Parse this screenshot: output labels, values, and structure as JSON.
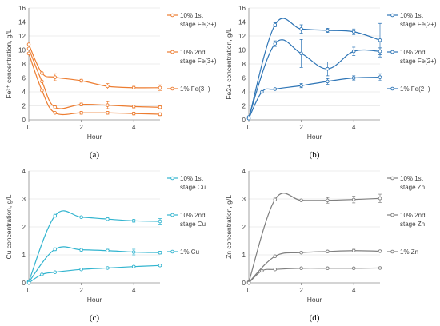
{
  "chart_data": [
    {
      "type": "line",
      "panel_label": "(a)",
      "xlabel": "Hour",
      "ylabel": "Fe³⁺ concentration, g/L",
      "xlim": [
        0,
        5
      ],
      "ylim": [
        0,
        16
      ],
      "xticks": [
        0,
        2,
        4
      ],
      "yticks": [
        0,
        2,
        4,
        6,
        8,
        10,
        12,
        14,
        16
      ],
      "grid": "horizontal",
      "legend_position": "right",
      "color": "#ed7d31",
      "series": [
        {
          "name_lines": [
            "10% 1st",
            "stage Fe(3+)"
          ],
          "x": [
            0,
            0.5,
            1,
            2,
            3,
            4,
            5
          ],
          "y": [
            9.5,
            4.2,
            1.0,
            1.0,
            1.0,
            0.9,
            0.8
          ],
          "err": [
            0,
            0,
            0,
            0.2,
            0.2,
            0.2,
            0.2
          ]
        },
        {
          "name_lines": [
            "10% 2nd",
            "stage Fe(3+)"
          ],
          "x": [
            0,
            0.5,
            1,
            2,
            3,
            4,
            5
          ],
          "y": [
            10.8,
            6.7,
            6.1,
            5.6,
            4.8,
            4.6,
            4.6
          ],
          "err": [
            0,
            0,
            0.5,
            0.2,
            0.4,
            0.2,
            0.4
          ]
        },
        {
          "name_lines": [
            "1% Fe(3+)"
          ],
          "x": [
            0,
            0.5,
            1,
            2,
            3,
            4,
            5
          ],
          "y": [
            10.2,
            5.5,
            1.8,
            2.2,
            2.1,
            1.9,
            1.8
          ],
          "err": [
            0,
            0,
            0.2,
            0.2,
            0.5,
            0.2,
            0.2
          ]
        }
      ]
    },
    {
      "type": "line",
      "panel_label": "(b)",
      "xlabel": "Hour",
      "ylabel": "Fe2+ concentration, g/L",
      "xlim": [
        0,
        5
      ],
      "ylim": [
        0,
        16
      ],
      "xticks": [
        0,
        2,
        4
      ],
      "yticks": [
        0,
        2,
        4,
        6,
        8,
        10,
        12,
        14,
        16
      ],
      "grid": "horizontal",
      "legend_position": "right",
      "color": "#2e75b6",
      "series": [
        {
          "name_lines": [
            "10% 1st",
            "stage Fe(2+)"
          ],
          "x": [
            0,
            1,
            2,
            3,
            4,
            5
          ],
          "y": [
            0.2,
            13.6,
            13.0,
            12.8,
            12.6,
            11.4
          ],
          "err": [
            0,
            0.3,
            0.6,
            0.3,
            0.4,
            2.4
          ]
        },
        {
          "name_lines": [
            "10% 2nd",
            "stage Fe(2+)"
          ],
          "x": [
            0,
            1,
            2,
            3,
            4,
            5
          ],
          "y": [
            0.4,
            10.9,
            9.5,
            7.3,
            9.8,
            9.8
          ],
          "err": [
            0,
            0.4,
            2.0,
            1.0,
            0.6,
            0.5
          ]
        },
        {
          "name_lines": [
            "1% Fe(2+)"
          ],
          "x": [
            0,
            0.5,
            1,
            2,
            3,
            4,
            5
          ],
          "y": [
            0.2,
            4.0,
            4.4,
            4.9,
            5.5,
            6.0,
            6.1
          ],
          "err": [
            0,
            0,
            0,
            0.3,
            0.4,
            0.3,
            0.5
          ]
        }
      ]
    },
    {
      "type": "line",
      "panel_label": "(c)",
      "xlabel": "Hour",
      "ylabel": "Cu concentration, g/L",
      "xlim": [
        0,
        5
      ],
      "ylim": [
        0,
        4
      ],
      "xticks": [
        0,
        2,
        4
      ],
      "yticks": [
        0,
        1,
        2,
        3,
        4
      ],
      "grid": "horizontal",
      "legend_position": "right",
      "color": "#31b4cf",
      "series": [
        {
          "name_lines": [
            "10% 1st",
            "stage Cu"
          ],
          "x": [
            0,
            1,
            2,
            3,
            4,
            5
          ],
          "y": [
            0.05,
            2.4,
            2.35,
            2.28,
            2.22,
            2.2
          ],
          "err": [
            0,
            0.05,
            0.03,
            0.05,
            0.05,
            0.1
          ]
        },
        {
          "name_lines": [
            "10% 2nd",
            "stage Cu"
          ],
          "x": [
            0,
            1,
            2,
            3,
            4,
            5
          ],
          "y": [
            0.03,
            1.2,
            1.18,
            1.15,
            1.1,
            1.08
          ],
          "err": [
            0,
            0.05,
            0.05,
            0.05,
            0.1,
            0.05
          ]
        },
        {
          "name_lines": [
            "1% Cu"
          ],
          "x": [
            0,
            0.5,
            1,
            2,
            3,
            4,
            5
          ],
          "y": [
            0.0,
            0.3,
            0.38,
            0.48,
            0.53,
            0.58,
            0.62
          ],
          "err": [
            0,
            0,
            0,
            0.03,
            0.03,
            0.03,
            0.03
          ]
        }
      ]
    },
    {
      "type": "line",
      "panel_label": "(d)",
      "xlabel": "Hour",
      "ylabel": "Zn concentration, g/L",
      "xlim": [
        0,
        5
      ],
      "ylim": [
        0,
        4
      ],
      "xticks": [
        0,
        2,
        4
      ],
      "yticks": [
        0,
        1,
        2,
        3,
        4
      ],
      "grid": "horizontal",
      "legend_position": "right",
      "color": "#7f7f7f",
      "series": [
        {
          "name_lines": [
            "10% 1st",
            "stage Zn"
          ],
          "x": [
            0,
            1,
            2,
            3,
            4,
            5
          ],
          "y": [
            0.03,
            2.98,
            2.95,
            2.95,
            2.98,
            3.02
          ],
          "err": [
            0,
            0.05,
            0.02,
            0.1,
            0.12,
            0.15
          ]
        },
        {
          "name_lines": [
            "10% 2nd",
            "stage Zn"
          ],
          "x": [
            0,
            1,
            2,
            3,
            4,
            5
          ],
          "y": [
            0.02,
            0.95,
            1.08,
            1.12,
            1.15,
            1.13
          ],
          "err": [
            0,
            0.03,
            0.03,
            0.03,
            0.05,
            0.03
          ]
        },
        {
          "name_lines": [
            "1% Zn"
          ],
          "x": [
            0,
            0.5,
            1,
            2,
            3,
            4,
            5
          ],
          "y": [
            0.0,
            0.43,
            0.48,
            0.52,
            0.52,
            0.52,
            0.53
          ],
          "err": [
            0,
            0,
            0,
            0.02,
            0.02,
            0.02,
            0.02
          ]
        }
      ]
    }
  ]
}
